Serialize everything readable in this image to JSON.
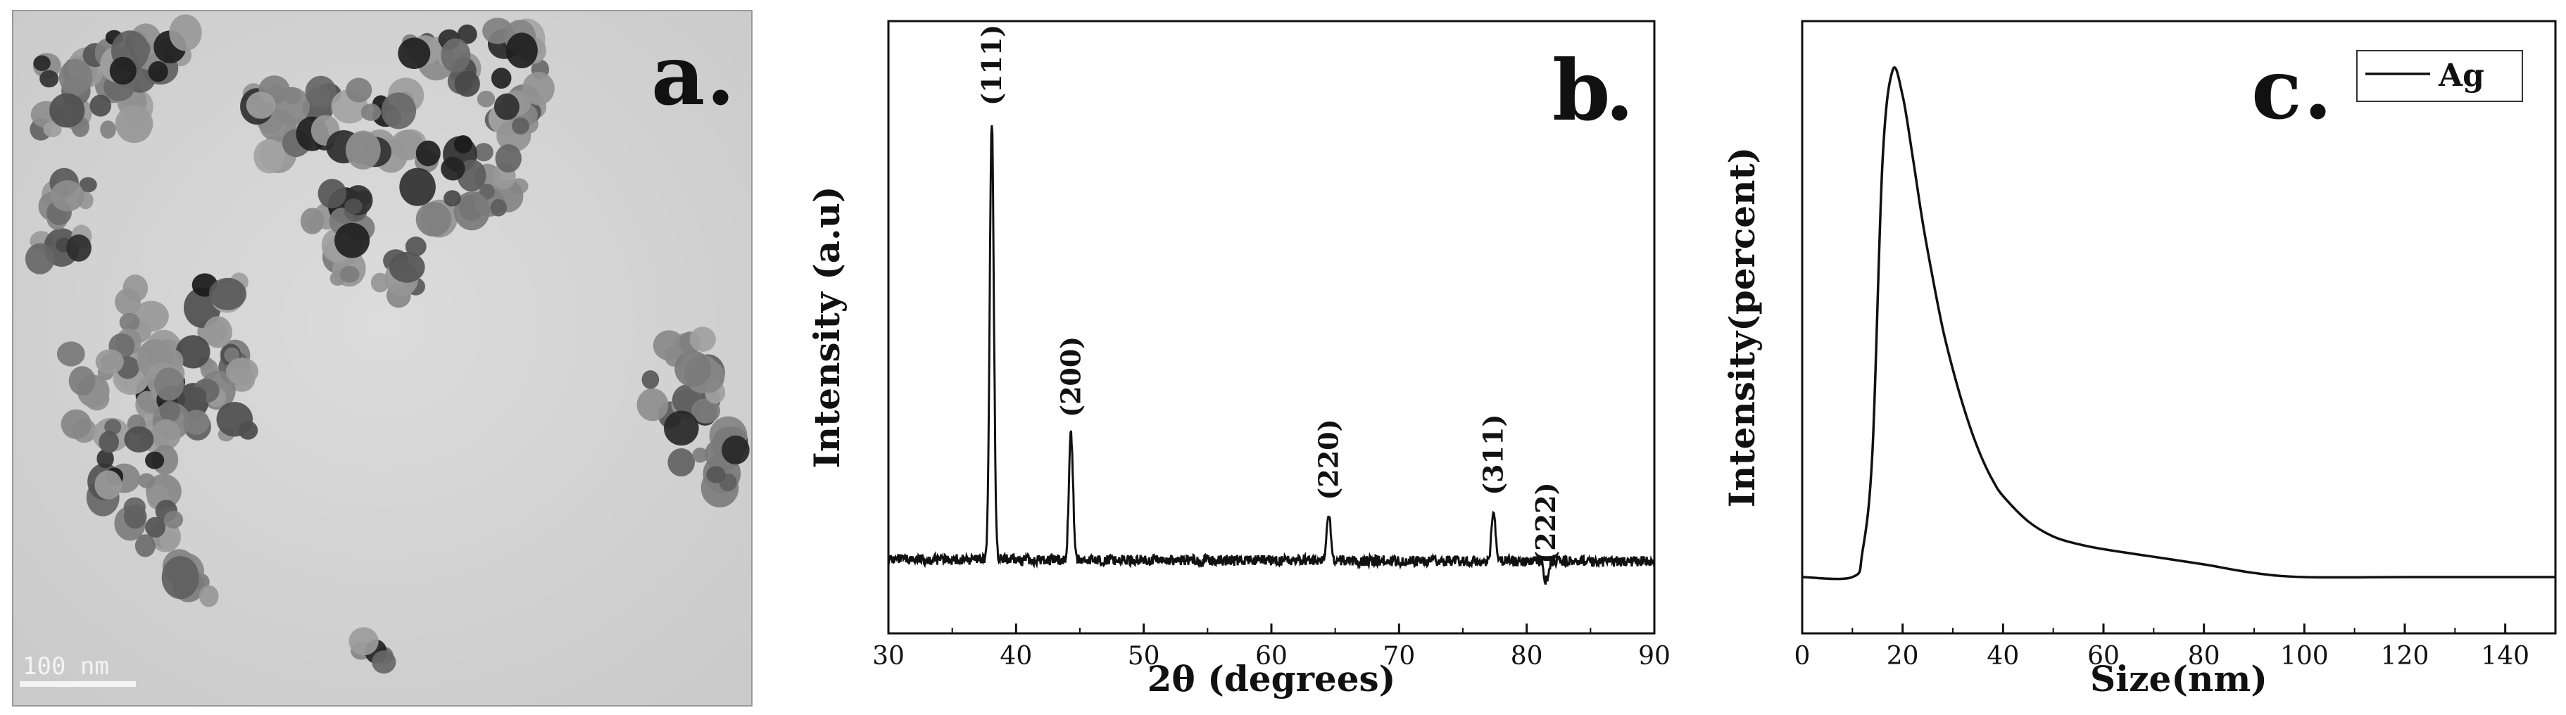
{
  "panels": {
    "a": {
      "letter": "a",
      "scale_bar_label": "100 nm"
    },
    "b": {
      "letter": "b"
    },
    "c": {
      "letter": "c"
    }
  },
  "chart_data": [
    {
      "type": "line",
      "panel": "b",
      "title": "",
      "xlabel": "2θ (degrees)",
      "ylabel": "Intensity (a.u)",
      "xlim": [
        30,
        90
      ],
      "xticks": [
        30,
        40,
        50,
        60,
        70,
        80,
        90
      ],
      "yticks": [],
      "grid": false,
      "baseline": 0.1,
      "peaks": [
        {
          "label": "(111)",
          "x": 38.1,
          "height": 1.0,
          "width": 0.32
        },
        {
          "label": "(200)",
          "x": 44.3,
          "height": 0.36,
          "width": 0.32
        },
        {
          "label": "(220)",
          "x": 64.5,
          "height": 0.19,
          "width": 0.32
        },
        {
          "label": "(311)",
          "x": 77.4,
          "height": 0.2,
          "width": 0.32
        },
        {
          "label": "(222)",
          "x": 81.5,
          "height": 0.06,
          "width": 0.32
        }
      ]
    },
    {
      "type": "line",
      "panel": "c",
      "title": "",
      "xlabel": "Size(nm)",
      "ylabel": "Intensity(percent)",
      "xlim": [
        0,
        150
      ],
      "xticks": [
        0,
        20,
        40,
        60,
        80,
        100,
        120,
        140
      ],
      "yticks": [],
      "grid": false,
      "legend": "top-right",
      "series": [
        {
          "name": "Ag",
          "x": [
            0,
            10,
            12,
            14,
            16,
            18,
            20,
            22,
            24,
            26,
            28,
            30,
            32,
            34,
            36,
            38,
            40,
            45,
            50,
            55,
            60,
            70,
            80,
            90,
            100,
            120,
            140,
            150
          ],
          "y": [
            0.0,
            0.0,
            0.05,
            0.25,
            0.82,
            1.0,
            0.95,
            0.83,
            0.7,
            0.59,
            0.49,
            0.41,
            0.34,
            0.28,
            0.23,
            0.19,
            0.16,
            0.11,
            0.08,
            0.065,
            0.055,
            0.04,
            0.025,
            0.008,
            0.0,
            0.0,
            0.0,
            0.0
          ]
        }
      ]
    }
  ]
}
